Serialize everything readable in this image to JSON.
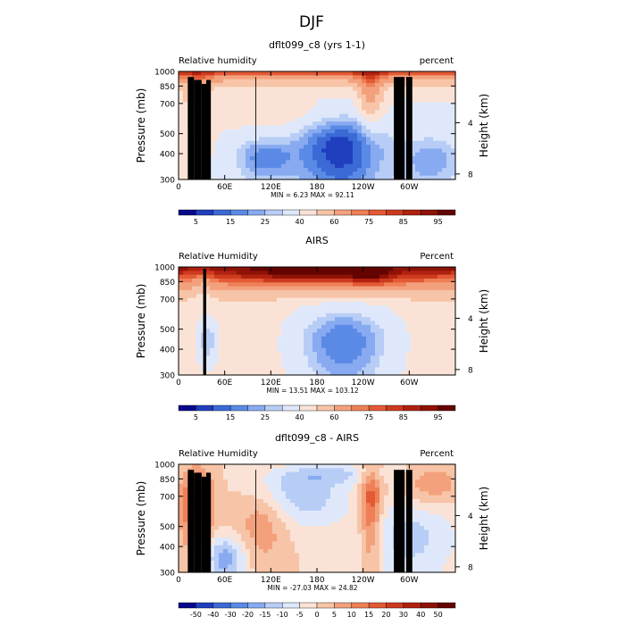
{
  "page_title": "DJF",
  "chart_data": [
    {
      "type": "heatmap",
      "title": "dflt099_c8 (yrs 1-1)",
      "left_label": "Relative humidity",
      "right_label": "percent",
      "ylabel": "Pressure (mb)",
      "ylabel_right": "Height (km)",
      "x_ticks": [
        "0",
        "60E",
        "120E",
        "180",
        "120W",
        "60W"
      ],
      "x_tick_values": [
        0,
        60,
        120,
        180,
        240,
        300
      ],
      "xlim": [
        0,
        360
      ],
      "y_ticks": [
        "300",
        "400",
        "500",
        "700",
        "850",
        "1000"
      ],
      "y_tick_values": [
        300,
        400,
        500,
        700,
        850,
        1000
      ],
      "ylim": [
        1000,
        300
      ],
      "y_scale": "log",
      "right_ticks": [
        "8",
        "4"
      ],
      "right_tick_values": [
        8,
        4
      ],
      "stats": "MIN =     6.23   MAX =    92.11",
      "colorbar_labels": [
        "5",
        "15",
        "25",
        "40",
        "60",
        "75",
        "85",
        "95"
      ],
      "colorbar_levels": [
        5,
        10,
        15,
        20,
        25,
        30,
        40,
        50,
        60,
        70,
        75,
        80,
        85,
        90,
        95
      ],
      "colors": [
        "#08088c",
        "#1f3fbf",
        "#3b6ad6",
        "#5b8ae6",
        "#88aaf0",
        "#b7cdf6",
        "#dfe8fa",
        "#fae3d6",
        "#f7c4a7",
        "#f3a17c",
        "#ee7f57",
        "#e35a35",
        "#cd3a1e",
        "#b02110",
        "#8f1206",
        "#640400"
      ],
      "min": 6.23,
      "max": 92.11
    },
    {
      "type": "heatmap",
      "title": "AIRS",
      "left_label": "Relative Humidity",
      "right_label": "Percent",
      "ylabel": "Pressure (mb)",
      "ylabel_right": "Height (km)",
      "x_ticks": [
        "0",
        "60E",
        "120E",
        "180",
        "120W",
        "60W"
      ],
      "x_tick_values": [
        0,
        60,
        120,
        180,
        240,
        300
      ],
      "xlim": [
        0,
        360
      ],
      "y_ticks": [
        "300",
        "400",
        "500",
        "700",
        "850",
        "1000"
      ],
      "y_tick_values": [
        300,
        400,
        500,
        700,
        850,
        1000
      ],
      "ylim": [
        1000,
        300
      ],
      "y_scale": "log",
      "right_ticks": [
        "8",
        "4"
      ],
      "right_tick_values": [
        8,
        4
      ],
      "stats": "MIN =    13.51   MAX =   103.12",
      "colorbar_labels": [
        "5",
        "15",
        "25",
        "40",
        "60",
        "75",
        "85",
        "95"
      ],
      "colorbar_levels": [
        5,
        10,
        15,
        20,
        25,
        30,
        40,
        50,
        60,
        70,
        75,
        80,
        85,
        90,
        95
      ],
      "colors": [
        "#08088c",
        "#1f3fbf",
        "#3b6ad6",
        "#5b8ae6",
        "#88aaf0",
        "#b7cdf6",
        "#dfe8fa",
        "#fae3d6",
        "#f7c4a7",
        "#f3a17c",
        "#ee7f57",
        "#e35a35",
        "#cd3a1e",
        "#b02110",
        "#8f1206",
        "#640400"
      ],
      "min": 13.51,
      "max": 103.12
    },
    {
      "type": "heatmap",
      "title": "dflt099_c8 - AIRS",
      "left_label": "Relative Humidity",
      "right_label": "Percent",
      "ylabel": "Pressure (mb)",
      "ylabel_right": "Height (km)",
      "x_ticks": [
        "0",
        "60E",
        "120E",
        "180",
        "120W",
        "60W"
      ],
      "x_tick_values": [
        0,
        60,
        120,
        180,
        240,
        300
      ],
      "xlim": [
        0,
        360
      ],
      "y_ticks": [
        "300",
        "400",
        "500",
        "700",
        "850",
        "1000"
      ],
      "y_tick_values": [
        300,
        400,
        500,
        700,
        850,
        1000
      ],
      "ylim": [
        1000,
        300
      ],
      "y_scale": "log",
      "right_ticks": [
        "8",
        "4"
      ],
      "right_tick_values": [
        8,
        4
      ],
      "stats": "MIN =   -27.03   MAX =    24.82",
      "colorbar_labels": [
        "-50",
        "-40",
        "-30",
        "-20",
        "-15",
        "-10",
        "-5",
        "0",
        "5",
        "10",
        "15",
        "20",
        "30",
        "40",
        "50"
      ],
      "colorbar_levels": [
        -50,
        -40,
        -30,
        -20,
        -15,
        -10,
        -5,
        0,
        5,
        10,
        15,
        20,
        30,
        40,
        50
      ],
      "colors": [
        "#08088c",
        "#1f3fbf",
        "#3b6ad6",
        "#5b8ae6",
        "#88aaf0",
        "#b7cdf6",
        "#dfe8fa",
        "#fae3d6",
        "#f7c4a7",
        "#f3a17c",
        "#ee7f57",
        "#e35a35",
        "#cd3a1e",
        "#b02110",
        "#8f1206",
        "#640400"
      ],
      "min": -27.03,
      "max": 24.82
    }
  ]
}
